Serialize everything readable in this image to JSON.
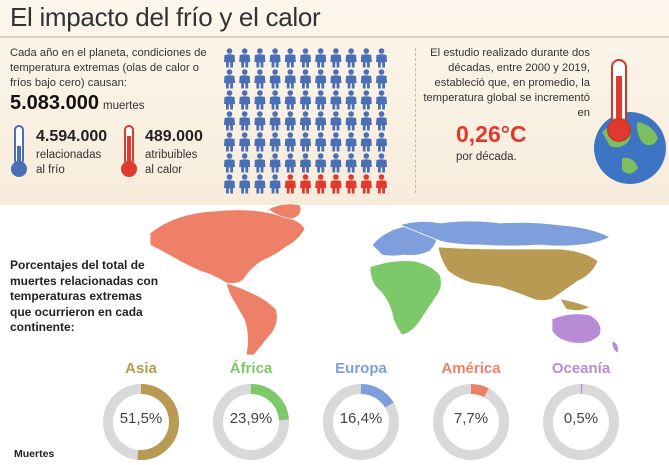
{
  "title": "El impacto del frío y el calor",
  "intro": {
    "text": "Cada año en el planeta, condiciones de temperatura extremas (olas de calor o fríos bajo cero) causan:",
    "total_value": "5.083.000",
    "total_label": "muertes"
  },
  "cold": {
    "value": "4.594.000",
    "label_line1": "relacionadas",
    "label_line2": "al frío",
    "color": "#4a6fb5"
  },
  "heat": {
    "value": "489.000",
    "label_line1": "atribuibles",
    "label_line2": "al calor",
    "color": "#e03a2f"
  },
  "people_icons": {
    "rows": 7,
    "columns": 11,
    "cold_color": "#4a6fb5",
    "heat_color": "#e03a2f",
    "heat_icon_count": 7
  },
  "study": {
    "text": "El estudio realizado durante dos décadas, entre 2000 y 2019, estableció que, en promedio, la temperatura global se incrementó en",
    "rate_value": "0,26°C",
    "rate_unit": "por década."
  },
  "percentages_intro": "Porcentajes del total de muertes relacionadas con temperaturas extremas que ocurrieron en cada continente:",
  "continents": [
    {
      "name": "Asia",
      "value": "51,5%",
      "fraction": 0.515,
      "color": "#b89a52"
    },
    {
      "name": "África",
      "value": "23,9%",
      "fraction": 0.239,
      "color": "#7cc96a"
    },
    {
      "name": "Europa",
      "value": "16,4%",
      "fraction": 0.164,
      "color": "#7f9fdc"
    },
    {
      "name": "América",
      "value": "7,7%",
      "fraction": 0.077,
      "color": "#ef8068"
    },
    {
      "name": "Oceanía",
      "value": "0,5%",
      "fraction": 0.005,
      "color": "#b98ad6"
    }
  ],
  "footer_label": "Muertes"
}
